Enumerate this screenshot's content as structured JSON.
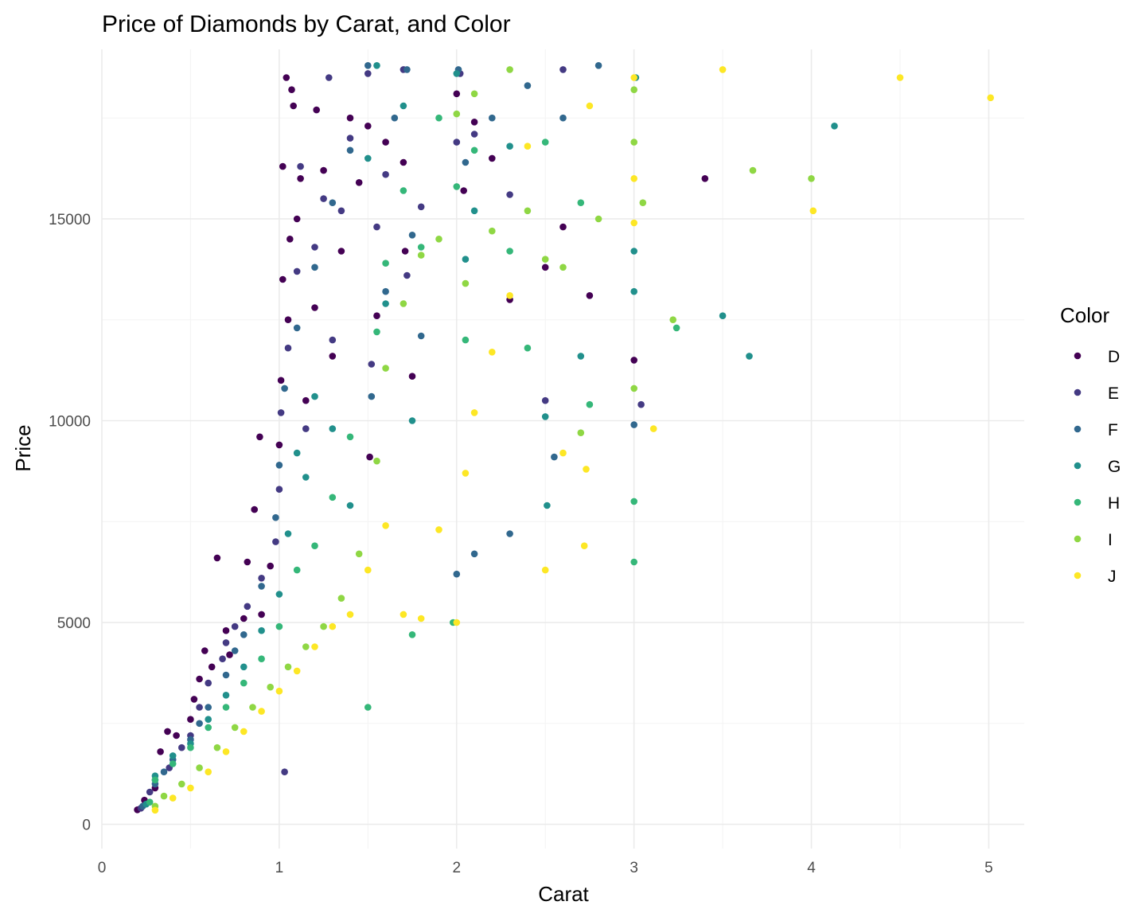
{
  "chart_data": {
    "type": "scatter",
    "title": "Price of Diamonds by Carat, and Color",
    "xlabel": "Carat",
    "ylabel": "Price",
    "xlim": [
      0,
      5.2
    ],
    "ylim": [
      -600,
      19200
    ],
    "x_ticks": [
      0,
      1,
      2,
      3,
      4,
      5
    ],
    "y_ticks": [
      0,
      5000,
      10000,
      15000
    ],
    "grid": true,
    "legend": {
      "title": "Color",
      "placement": "right",
      "entries": [
        "D",
        "E",
        "F",
        "G",
        "H",
        "I",
        "J"
      ]
    },
    "colors": {
      "D": "#440154",
      "E": "#443A83",
      "F": "#31688E",
      "G": "#21908C",
      "H": "#35B779",
      "I": "#8FD744",
      "J": "#FDE725"
    },
    "series": [
      {
        "name": "D",
        "points": [
          [
            0.2,
            360
          ],
          [
            0.24,
            600
          ],
          [
            0.3,
            900
          ],
          [
            0.33,
            1800
          ],
          [
            0.37,
            2300
          ],
          [
            0.42,
            2200
          ],
          [
            0.5,
            2600
          ],
          [
            0.52,
            3100
          ],
          [
            0.55,
            3600
          ],
          [
            0.58,
            4300
          ],
          [
            0.62,
            3900
          ],
          [
            0.65,
            6600
          ],
          [
            0.7,
            4800
          ],
          [
            0.72,
            4200
          ],
          [
            0.8,
            5100
          ],
          [
            0.82,
            6500
          ],
          [
            0.86,
            7800
          ],
          [
            0.89,
            9600
          ],
          [
            0.9,
            5200
          ],
          [
            0.95,
            6400
          ],
          [
            1.0,
            9400
          ],
          [
            1.01,
            11000
          ],
          [
            1.02,
            13500
          ],
          [
            1.02,
            16300
          ],
          [
            1.04,
            18500
          ],
          [
            1.05,
            12500
          ],
          [
            1.06,
            14500
          ],
          [
            1.07,
            18200
          ],
          [
            1.08,
            17800
          ],
          [
            1.1,
            15000
          ],
          [
            1.12,
            16000
          ],
          [
            1.15,
            10500
          ],
          [
            1.2,
            12800
          ],
          [
            1.21,
            17700
          ],
          [
            1.25,
            16200
          ],
          [
            1.3,
            11600
          ],
          [
            1.35,
            14200
          ],
          [
            1.4,
            17500
          ],
          [
            1.45,
            15900
          ],
          [
            1.5,
            17300
          ],
          [
            1.51,
            9100
          ],
          [
            1.55,
            12600
          ],
          [
            1.6,
            16900
          ],
          [
            1.7,
            16400
          ],
          [
            1.71,
            14200
          ],
          [
            1.75,
            11100
          ],
          [
            2.0,
            18100
          ],
          [
            2.04,
            15700
          ],
          [
            2.1,
            17400
          ],
          [
            2.2,
            16500
          ],
          [
            2.3,
            13000
          ],
          [
            2.5,
            13800
          ],
          [
            2.6,
            14800
          ],
          [
            2.75,
            13100
          ],
          [
            3.0,
            11500
          ],
          [
            3.4,
            16000
          ]
        ]
      },
      {
        "name": "E",
        "points": [
          [
            0.22,
            400
          ],
          [
            0.27,
            800
          ],
          [
            0.3,
            1100
          ],
          [
            0.38,
            1400
          ],
          [
            0.45,
            1900
          ],
          [
            0.5,
            2200
          ],
          [
            0.55,
            2900
          ],
          [
            0.6,
            3500
          ],
          [
            0.68,
            4100
          ],
          [
            0.7,
            4500
          ],
          [
            0.75,
            4900
          ],
          [
            0.82,
            5400
          ],
          [
            0.9,
            6100
          ],
          [
            0.98,
            7000
          ],
          [
            1.0,
            8300
          ],
          [
            1.01,
            10200
          ],
          [
            1.03,
            1300
          ],
          [
            1.05,
            11800
          ],
          [
            1.1,
            13700
          ],
          [
            1.12,
            16300
          ],
          [
            1.15,
            9800
          ],
          [
            1.2,
            14300
          ],
          [
            1.25,
            15500
          ],
          [
            1.28,
            18500
          ],
          [
            1.3,
            12000
          ],
          [
            1.35,
            15200
          ],
          [
            1.4,
            17000
          ],
          [
            1.5,
            18600
          ],
          [
            1.52,
            11400
          ],
          [
            1.55,
            14800
          ],
          [
            1.6,
            16100
          ],
          [
            1.7,
            18700
          ],
          [
            1.72,
            13600
          ],
          [
            1.8,
            15300
          ],
          [
            2.0,
            16900
          ],
          [
            2.02,
            18600
          ],
          [
            2.1,
            17100
          ],
          [
            2.3,
            15600
          ],
          [
            2.5,
            10500
          ],
          [
            2.6,
            18700
          ],
          [
            3.04,
            10400
          ]
        ]
      },
      {
        "name": "F",
        "points": [
          [
            0.23,
            450
          ],
          [
            0.3,
            1000
          ],
          [
            0.35,
            1300
          ],
          [
            0.4,
            1600
          ],
          [
            0.5,
            2100
          ],
          [
            0.55,
            2500
          ],
          [
            0.6,
            2900
          ],
          [
            0.7,
            3700
          ],
          [
            0.75,
            4300
          ],
          [
            0.8,
            4700
          ],
          [
            0.9,
            5900
          ],
          [
            0.98,
            7600
          ],
          [
            1.0,
            8900
          ],
          [
            1.03,
            10800
          ],
          [
            1.1,
            12300
          ],
          [
            1.2,
            13800
          ],
          [
            1.3,
            15400
          ],
          [
            1.4,
            16700
          ],
          [
            1.5,
            18800
          ],
          [
            1.52,
            10600
          ],
          [
            1.6,
            13200
          ],
          [
            1.65,
            17500
          ],
          [
            1.72,
            18700
          ],
          [
            1.75,
            14600
          ],
          [
            1.8,
            12100
          ],
          [
            2.0,
            6200
          ],
          [
            2.01,
            18700
          ],
          [
            2.05,
            16400
          ],
          [
            2.1,
            6700
          ],
          [
            2.2,
            17500
          ],
          [
            2.3,
            7200
          ],
          [
            2.4,
            18300
          ],
          [
            2.6,
            17500
          ],
          [
            2.8,
            18800
          ],
          [
            3.0,
            9900
          ],
          [
            2.55,
            9100
          ]
        ]
      },
      {
        "name": "G",
        "points": [
          [
            0.25,
            500
          ],
          [
            0.3,
            1200
          ],
          [
            0.4,
            1700
          ],
          [
            0.5,
            2000
          ],
          [
            0.6,
            2600
          ],
          [
            0.7,
            3200
          ],
          [
            0.8,
            3900
          ],
          [
            0.9,
            4800
          ],
          [
            1.0,
            5700
          ],
          [
            1.05,
            7200
          ],
          [
            1.1,
            9200
          ],
          [
            1.15,
            8600
          ],
          [
            1.2,
            10600
          ],
          [
            1.3,
            9800
          ],
          [
            1.4,
            7900
          ],
          [
            1.5,
            16500
          ],
          [
            1.55,
            18800
          ],
          [
            1.6,
            12900
          ],
          [
            1.7,
            17800
          ],
          [
            1.75,
            10000
          ],
          [
            2.0,
            18600
          ],
          [
            2.05,
            14000
          ],
          [
            2.1,
            15200
          ],
          [
            2.3,
            16800
          ],
          [
            2.5,
            10100
          ],
          [
            2.51,
            7900
          ],
          [
            2.7,
            11600
          ],
          [
            3.0,
            13200
          ],
          [
            3.0,
            14200
          ],
          [
            3.01,
            18500
          ],
          [
            3.5,
            12600
          ],
          [
            3.65,
            11600
          ],
          [
            4.13,
            17300
          ]
        ]
      },
      {
        "name": "H",
        "points": [
          [
            0.27,
            550
          ],
          [
            0.3,
            1100
          ],
          [
            0.4,
            1500
          ],
          [
            0.5,
            1900
          ],
          [
            0.6,
            2400
          ],
          [
            0.7,
            2900
          ],
          [
            0.8,
            3500
          ],
          [
            0.9,
            4100
          ],
          [
            1.0,
            4900
          ],
          [
            1.1,
            6300
          ],
          [
            1.2,
            6900
          ],
          [
            1.3,
            8100
          ],
          [
            1.4,
            9600
          ],
          [
            1.5,
            2900
          ],
          [
            1.55,
            12200
          ],
          [
            1.6,
            13900
          ],
          [
            1.7,
            15700
          ],
          [
            1.75,
            4700
          ],
          [
            1.8,
            14300
          ],
          [
            1.9,
            17500
          ],
          [
            1.98,
            5000
          ],
          [
            2.0,
            15800
          ],
          [
            2.05,
            12000
          ],
          [
            2.1,
            16700
          ],
          [
            2.3,
            14200
          ],
          [
            2.4,
            11800
          ],
          [
            2.5,
            16900
          ],
          [
            2.7,
            15400
          ],
          [
            2.75,
            10400
          ],
          [
            3.0,
            8000
          ],
          [
            3.0,
            6500
          ],
          [
            3.24,
            12300
          ]
        ]
      },
      {
        "name": "I",
        "points": [
          [
            0.3,
            450
          ],
          [
            0.35,
            700
          ],
          [
            0.45,
            1000
          ],
          [
            0.55,
            1400
          ],
          [
            0.65,
            1900
          ],
          [
            0.75,
            2400
          ],
          [
            0.85,
            2900
          ],
          [
            0.95,
            3400
          ],
          [
            1.05,
            3900
          ],
          [
            1.15,
            4400
          ],
          [
            1.25,
            4900
          ],
          [
            1.35,
            5600
          ],
          [
            1.45,
            6700
          ],
          [
            1.55,
            9000
          ],
          [
            1.6,
            11300
          ],
          [
            1.7,
            12900
          ],
          [
            1.8,
            14100
          ],
          [
            1.9,
            14500
          ],
          [
            2.0,
            17600
          ],
          [
            2.05,
            13400
          ],
          [
            2.1,
            18100
          ],
          [
            2.2,
            14700
          ],
          [
            2.3,
            18700
          ],
          [
            2.4,
            15200
          ],
          [
            2.5,
            14000
          ],
          [
            2.6,
            13800
          ],
          [
            2.7,
            9700
          ],
          [
            2.8,
            15000
          ],
          [
            3.0,
            10800
          ],
          [
            3.0,
            16900
          ],
          [
            3.0,
            18200
          ],
          [
            3.05,
            15400
          ],
          [
            3.22,
            12500
          ],
          [
            3.67,
            16200
          ],
          [
            4.0,
            16000
          ]
        ]
      },
      {
        "name": "J",
        "points": [
          [
            0.3,
            350
          ],
          [
            0.4,
            650
          ],
          [
            0.5,
            900
          ],
          [
            0.6,
            1300
          ],
          [
            0.7,
            1800
          ],
          [
            0.8,
            2300
          ],
          [
            0.9,
            2800
          ],
          [
            1.0,
            3300
          ],
          [
            1.1,
            3800
          ],
          [
            1.2,
            4400
          ],
          [
            1.3,
            4900
          ],
          [
            1.4,
            5200
          ],
          [
            1.5,
            6300
          ],
          [
            1.6,
            7400
          ],
          [
            1.7,
            5200
          ],
          [
            1.8,
            5100
          ],
          [
            1.9,
            7300
          ],
          [
            2.0,
            5000
          ],
          [
            2.05,
            8700
          ],
          [
            2.1,
            10200
          ],
          [
            2.2,
            11700
          ],
          [
            2.3,
            13100
          ],
          [
            2.4,
            16800
          ],
          [
            2.5,
            6300
          ],
          [
            2.6,
            9200
          ],
          [
            2.72,
            6900
          ],
          [
            2.73,
            8800
          ],
          [
            2.75,
            17800
          ],
          [
            3.0,
            14900
          ],
          [
            3.0,
            16000
          ],
          [
            3.0,
            18500
          ],
          [
            3.11,
            9800
          ],
          [
            3.5,
            18700
          ],
          [
            4.01,
            15200
          ],
          [
            4.5,
            18500
          ],
          [
            5.01,
            18000
          ]
        ]
      }
    ]
  }
}
